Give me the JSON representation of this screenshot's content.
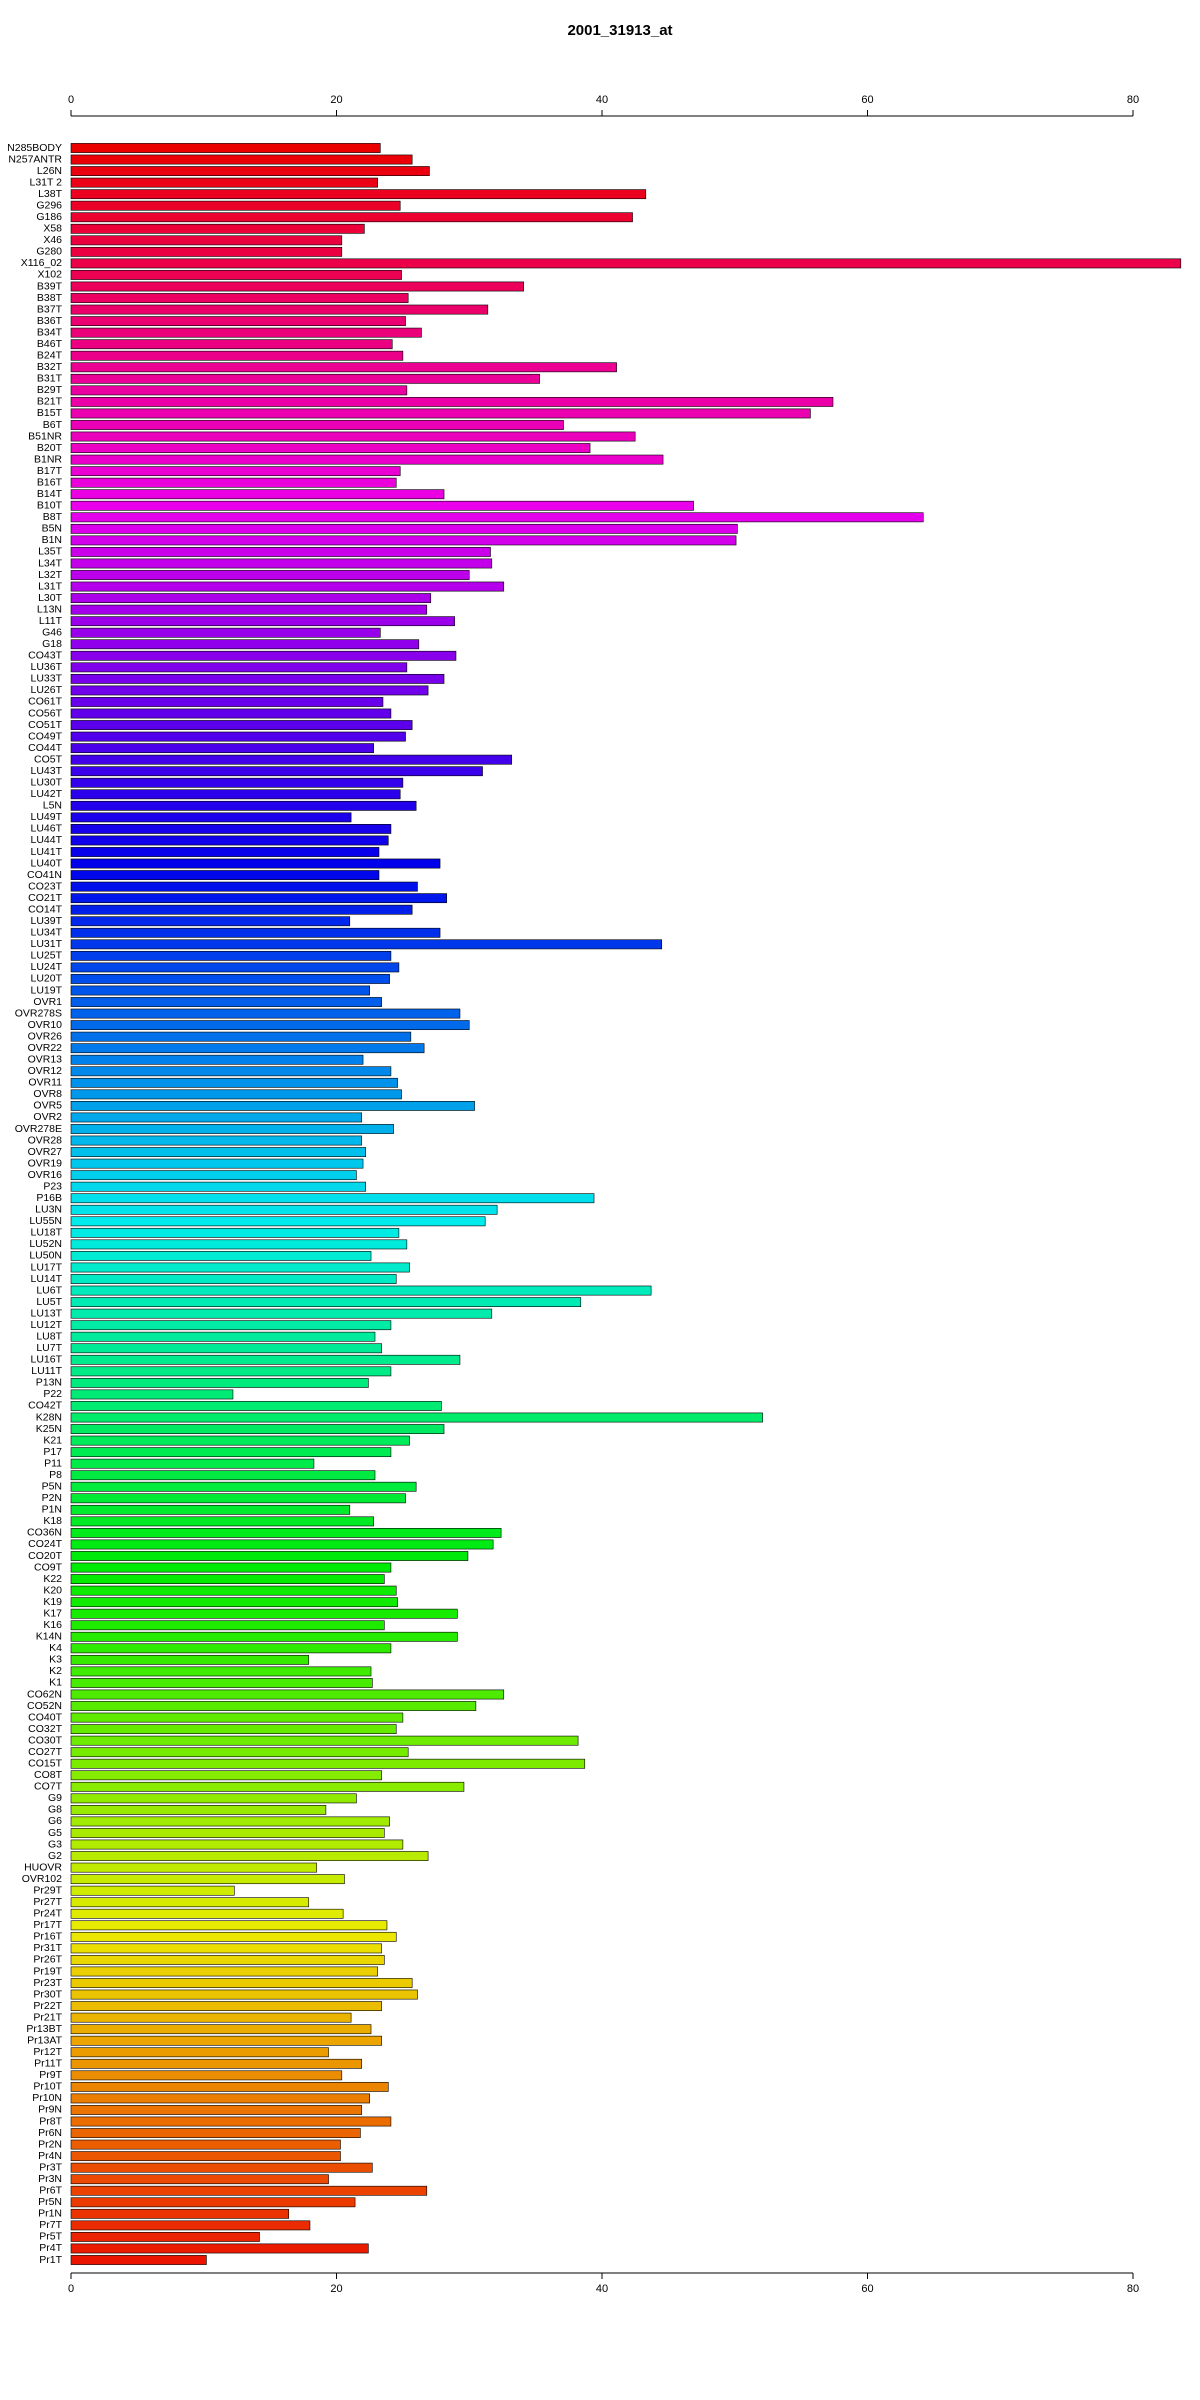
{
  "chart_data": {
    "type": "barh",
    "title": "2001_31913_at",
    "categories": [
      "N285BODY",
      "N257ANTR",
      "L26N",
      "L31T 2",
      "L38T",
      "G296",
      "G186",
      "X58",
      "X46",
      "G280",
      "X116_02",
      "X102",
      "B39T",
      "B38T",
      "B37T",
      "B36T",
      "B34T",
      "B46T",
      "B24T",
      "B32T",
      "B31T",
      "B29T",
      "B21T",
      "B15T",
      "B6T",
      "B51NR",
      "B20T",
      "B1NR",
      "B17T",
      "B16T",
      "B14T",
      "B10T",
      "B8T",
      "B5N",
      "B1N",
      "L35T",
      "L34T",
      "L32T",
      "L31T",
      "L30T",
      "L13N",
      "L11T",
      "G46",
      "G18",
      "CO43T",
      "LU36T",
      "LU33T",
      "LU26T",
      "CO61T",
      "CO56T",
      "CO51T",
      "CO49T",
      "CO44T",
      "CO5T",
      "LU43T",
      "LU30T",
      "LU42T",
      "L5N",
      "LU49T",
      "LU46T",
      "LU44T",
      "LU41T",
      "LU40T",
      "CO41N",
      "CO23T",
      "CO21T",
      "CO14T",
      "LU39T",
      "LU34T",
      "LU31T",
      "LU25T",
      "LU24T",
      "LU20T",
      "LU19T",
      "OVR1",
      "OVR278S",
      "OVR10",
      "OVR26",
      "OVR22",
      "OVR13",
      "OVR12",
      "OVR11",
      "OVR8",
      "OVR5",
      "OVR2",
      "OVR278E",
      "OVR28",
      "OVR27",
      "OVR19",
      "OVR16",
      "P23",
      "P16B",
      "LU3N",
      "LU55N",
      "LU18T",
      "LU52N",
      "LU50N",
      "LU17T",
      "LU14T",
      "LU6T",
      "LU5T",
      "LU13T",
      "LU12T",
      "LU8T",
      "LU7T",
      "LU16T",
      "LU11T",
      "P13N",
      "P22",
      "CO42T",
      "K28N",
      "K25N",
      "K21",
      "P17",
      "P11",
      "P8",
      "P5N",
      "P2N",
      "P1N",
      "K18",
      "CO36N",
      "CO24T",
      "CO20T",
      "CO9T",
      "K22",
      "K20",
      "K19",
      "K17",
      "K16",
      "K14N",
      "K4",
      "K3",
      "K2",
      "K1",
      "CO62N",
      "CO52N",
      "CO40T",
      "CO32T",
      "CO30T",
      "CO27T",
      "CO15T",
      "CO8T",
      "CO7T",
      "G9",
      "G8",
      "G6",
      "G5",
      "G3",
      "G2",
      "HUOVR",
      "OVR102",
      "Pr29T",
      "Pr27T",
      "Pr24T",
      "Pr17T",
      "Pr16T",
      "Pr31T",
      "Pr26T",
      "Pr19T",
      "Pr23T",
      "Pr30T",
      "Pr22T",
      "Pr21T",
      "Pr13BT",
      "Pr13AT",
      "Pr12T",
      "Pr11T",
      "Pr9T",
      "Pr10T",
      "Pr10N",
      "Pr9N",
      "Pr8T",
      "Pr6N",
      "Pr2N",
      "Pr4N",
      "Pr3T",
      "Pr3N",
      "Pr6T",
      "Pr5N",
      "Pr1N",
      "Pr7T",
      "Pr5T",
      "Pr4T",
      "Pr1T"
    ],
    "values": [
      23.3,
      25.7,
      27.0,
      23.1,
      43.3,
      24.8,
      42.3,
      22.1,
      20.4,
      20.4,
      83.6,
      24.9,
      34.1,
      25.4,
      31.4,
      25.2,
      26.4,
      24.2,
      25.0,
      41.1,
      35.3,
      25.3,
      57.4,
      55.7,
      37.1,
      42.5,
      39.1,
      44.6,
      24.8,
      24.5,
      28.1,
      46.9,
      64.2,
      50.2,
      50.1,
      31.6,
      31.7,
      30.0,
      32.6,
      27.1,
      26.8,
      28.9,
      23.3,
      26.2,
      29.0,
      25.3,
      28.1,
      26.9,
      23.5,
      24.1,
      25.7,
      25.2,
      22.8,
      33.2,
      31.0,
      25.0,
      24.8,
      26.0,
      21.1,
      24.1,
      23.9,
      23.2,
      27.8,
      23.2,
      26.1,
      28.3,
      25.7,
      21.0,
      27.8,
      44.5,
      24.1,
      24.7,
      24.0,
      22.5,
      23.4,
      29.3,
      30.0,
      25.6,
      26.6,
      22.0,
      24.1,
      24.6,
      24.9,
      30.4,
      21.9,
      24.3,
      21.9,
      22.2,
      22.0,
      21.5,
      22.2,
      39.4,
      32.1,
      31.2,
      24.7,
      25.3,
      22.6,
      25.5,
      24.5,
      43.7,
      38.4,
      31.7,
      24.1,
      22.9,
      23.4,
      29.3,
      24.1,
      22.4,
      12.2,
      27.9,
      52.1,
      28.1,
      25.5,
      24.1,
      18.3,
      22.9,
      26.0,
      25.2,
      21.0,
      22.8,
      32.4,
      31.8,
      29.9,
      24.1,
      23.6,
      24.5,
      24.6,
      29.1,
      23.6,
      29.1,
      24.1,
      17.9,
      22.6,
      22.7,
      32.6,
      30.5,
      25.0,
      24.5,
      38.2,
      25.4,
      38.7,
      23.4,
      29.6,
      21.5,
      19.2,
      24.0,
      23.6,
      25.0,
      26.9,
      18.5,
      20.6,
      12.3,
      17.9,
      20.5,
      23.8,
      24.5,
      23.4,
      23.6,
      23.1,
      25.7,
      26.1,
      23.4,
      21.1,
      22.6,
      23.4,
      19.4,
      21.9,
      20.4,
      23.9,
      22.5,
      21.9,
      24.1,
      21.8,
      20.3,
      20.3,
      22.7,
      19.4,
      26.8,
      21.4,
      16.4,
      18.0,
      14.2,
      22.4,
      10.2
    ],
    "colors": [
      "hsl(360,100%,46%)",
      "hsl(358,100%,46%)",
      "hsl(356,100%,46%)",
      "hsl(354,100%,46%)",
      "hsl(352,100%,46%)",
      "hsl(350,100%,46%)",
      "hsl(348,100%,46%)",
      "hsl(346,100%,46%)",
      "hsl(344,100%,46%)",
      "hsl(343,100%,46%)",
      "hsl(341,100%,46%)",
      "hsl(339,100%,46%)",
      "hsl(337,100%,46%)",
      "hsl(335,100%,46%)",
      "hsl(333,100%,46%)",
      "hsl(331,100%,46%)",
      "hsl(329,100%,46%)",
      "hsl(327,100%,46%)",
      "hsl(325,100%,46%)",
      "hsl(323,100%,46%)",
      "hsl(321,100%,46%)",
      "hsl(319,100%,46%)",
      "hsl(317,100%,46%)",
      "hsl(315,100%,46%)",
      "hsl(313,100%,46%)",
      "hsl(312,100%,46%)",
      "hsl(310,100%,46%)",
      "hsl(308,100%,46%)",
      "hsl(306,100%,46%)",
      "hsl(304,100%,46%)",
      "hsl(302,100%,46%)",
      "hsl(300,100%,46%)",
      "hsl(298,100%,46%)",
      "hsl(296,100%,46%)",
      "hsl(294,100%,46%)",
      "hsl(292,100%,46%)",
      "hsl(290,100%,46%)",
      "hsl(288,100%,46%)",
      "hsl(286,100%,46%)",
      "hsl(284,100%,46%)",
      "hsl(282,100%,46%)",
      "hsl(280,100%,46%)",
      "hsl(279,100%,46%)",
      "hsl(277,100%,46%)",
      "hsl(275,100%,46%)",
      "hsl(273,100%,46%)",
      "hsl(271,100%,46%)",
      "hsl(269,100%,46%)",
      "hsl(267,100%,46%)",
      "hsl(265,100%,46%)",
      "hsl(263,100%,46%)",
      "hsl(261,100%,46%)",
      "hsl(259,100%,46%)",
      "hsl(257,100%,46%)",
      "hsl(255,100%,46%)",
      "hsl(253,100%,46%)",
      "hsl(251,100%,46%)",
      "hsl(249,100%,46%)",
      "hsl(247,100%,46%)",
      "hsl(246,100%,46%)",
      "hsl(244,100%,46%)",
      "hsl(242,100%,46%)",
      "hsl(240,100%,46%)",
      "hsl(238,100%,46%)",
      "hsl(236,100%,46%)",
      "hsl(234,100%,46%)",
      "hsl(232,100%,46%)",
      "hsl(230,100%,46%)",
      "hsl(228,100%,46%)",
      "hsl(226,100%,46%)",
      "hsl(224,100%,46%)",
      "hsl(222,100%,46%)",
      "hsl(220,100%,46%)",
      "hsl(218,100%,46%)",
      "hsl(216,100%,46%)",
      "hsl(215,100%,46%)",
      "hsl(213,100%,46%)",
      "hsl(211,100%,46%)",
      "hsl(209,100%,46%)",
      "hsl(207,100%,46%)",
      "hsl(205,100%,46%)",
      "hsl(203,100%,46%)",
      "hsl(201,100%,46%)",
      "hsl(199,100%,46%)",
      "hsl(197,100%,46%)",
      "hsl(195,100%,46%)",
      "hsl(193,100%,46%)",
      "hsl(191,100%,46%)",
      "hsl(189,100%,46%)",
      "hsl(187,100%,46%)",
      "hsl(185,100%,46%)",
      "hsl(183,100%,46%)",
      "hsl(182,100%,46%)",
      "hsl(180,100%,46%)",
      "hsl(178,100%,46%)",
      "hsl(176,100%,46%)",
      "hsl(174,100%,46%)",
      "hsl(172,100%,46%)",
      "hsl(170,100%,46%)",
      "hsl(168,100%,46%)",
      "hsl(166,100%,46%)",
      "hsl(164,100%,46%)",
      "hsl(162,100%,46%)",
      "hsl(160,100%,46%)",
      "hsl(158,100%,46%)",
      "hsl(156,100%,46%)",
      "hsl(154,100%,46%)",
      "hsl(152,100%,46%)",
      "hsl(150,100%,46%)",
      "hsl(149,100%,46%)",
      "hsl(147,100%,46%)",
      "hsl(145,100%,46%)",
      "hsl(143,100%,46%)",
      "hsl(141,100%,46%)",
      "hsl(139,100%,46%)",
      "hsl(137,100%,46%)",
      "hsl(135,100%,46%)",
      "hsl(133,100%,46%)",
      "hsl(131,100%,46%)",
      "hsl(129,100%,46%)",
      "hsl(127,100%,46%)",
      "hsl(125,100%,46%)",
      "hsl(123,100%,46%)",
      "hsl(121,100%,46%)",
      "hsl(119,100%,46%)",
      "hsl(117,100%,46%)",
      "hsl(116,100%,46%)",
      "hsl(114,100%,46%)",
      "hsl(112,100%,46%)",
      "hsl(110,100%,46%)",
      "hsl(108,100%,46%)",
      "hsl(106,100%,46%)",
      "hsl(104,100%,46%)",
      "hsl(102,100%,46%)",
      "hsl(100,100%,46%)",
      "hsl(98,100%,46%)",
      "hsl(96,100%,46%)",
      "hsl(94,100%,46%)",
      "hsl(92,100%,46%)",
      "hsl(90,100%,46%)",
      "hsl(88,100%,46%)",
      "hsl(86,100%,46%)",
      "hsl(85,100%,46%)",
      "hsl(83,100%,46%)",
      "hsl(81,100%,46%)",
      "hsl(79,100%,46%)",
      "hsl(77,100%,46%)",
      "hsl(75,100%,46%)",
      "hsl(73,100%,46%)",
      "hsl(71,100%,46%)",
      "hsl(69,100%,46%)",
      "hsl(67,100%,46%)",
      "hsl(65,100%,46%)",
      "hsl(63,100%,46%)",
      "hsl(61,100%,46%)",
      "hsl(59,100%,46%)",
      "hsl(57,100%,46%)",
      "hsl(55,100%,46%)",
      "hsl(53,100%,46%)",
      "hsl(52,100%,46%)",
      "hsl(50,100%,46%)",
      "hsl(48,100%,46%)",
      "hsl(46,100%,46%)",
      "hsl(44,100%,46%)",
      "hsl(42,100%,46%)",
      "hsl(40,100%,46%)",
      "hsl(38,100%,46%)",
      "hsl(36,100%,46%)",
      "hsl(34,100%,46%)",
      "hsl(32,100%,46%)",
      "hsl(30,100%,46%)",
      "hsl(28,100%,46%)",
      "hsl(26,100%,46%)",
      "hsl(24,100%,46%)",
      "hsl(22,100%,46%)",
      "hsl(20,100%,46%)",
      "hsl(19,100%,46%)",
      "hsl(17,100%,46%)",
      "hsl(15,100%,46%)",
      "hsl(13,100%,46%)",
      "hsl(11,100%,46%)",
      "hsl(9,100%,46%)",
      "hsl(7,100%,46%)",
      "hsl(5,100%,46%)"
    ],
    "xlim": [
      0,
      84
    ],
    "xticks": [
      0,
      20,
      40,
      60,
      80
    ]
  }
}
